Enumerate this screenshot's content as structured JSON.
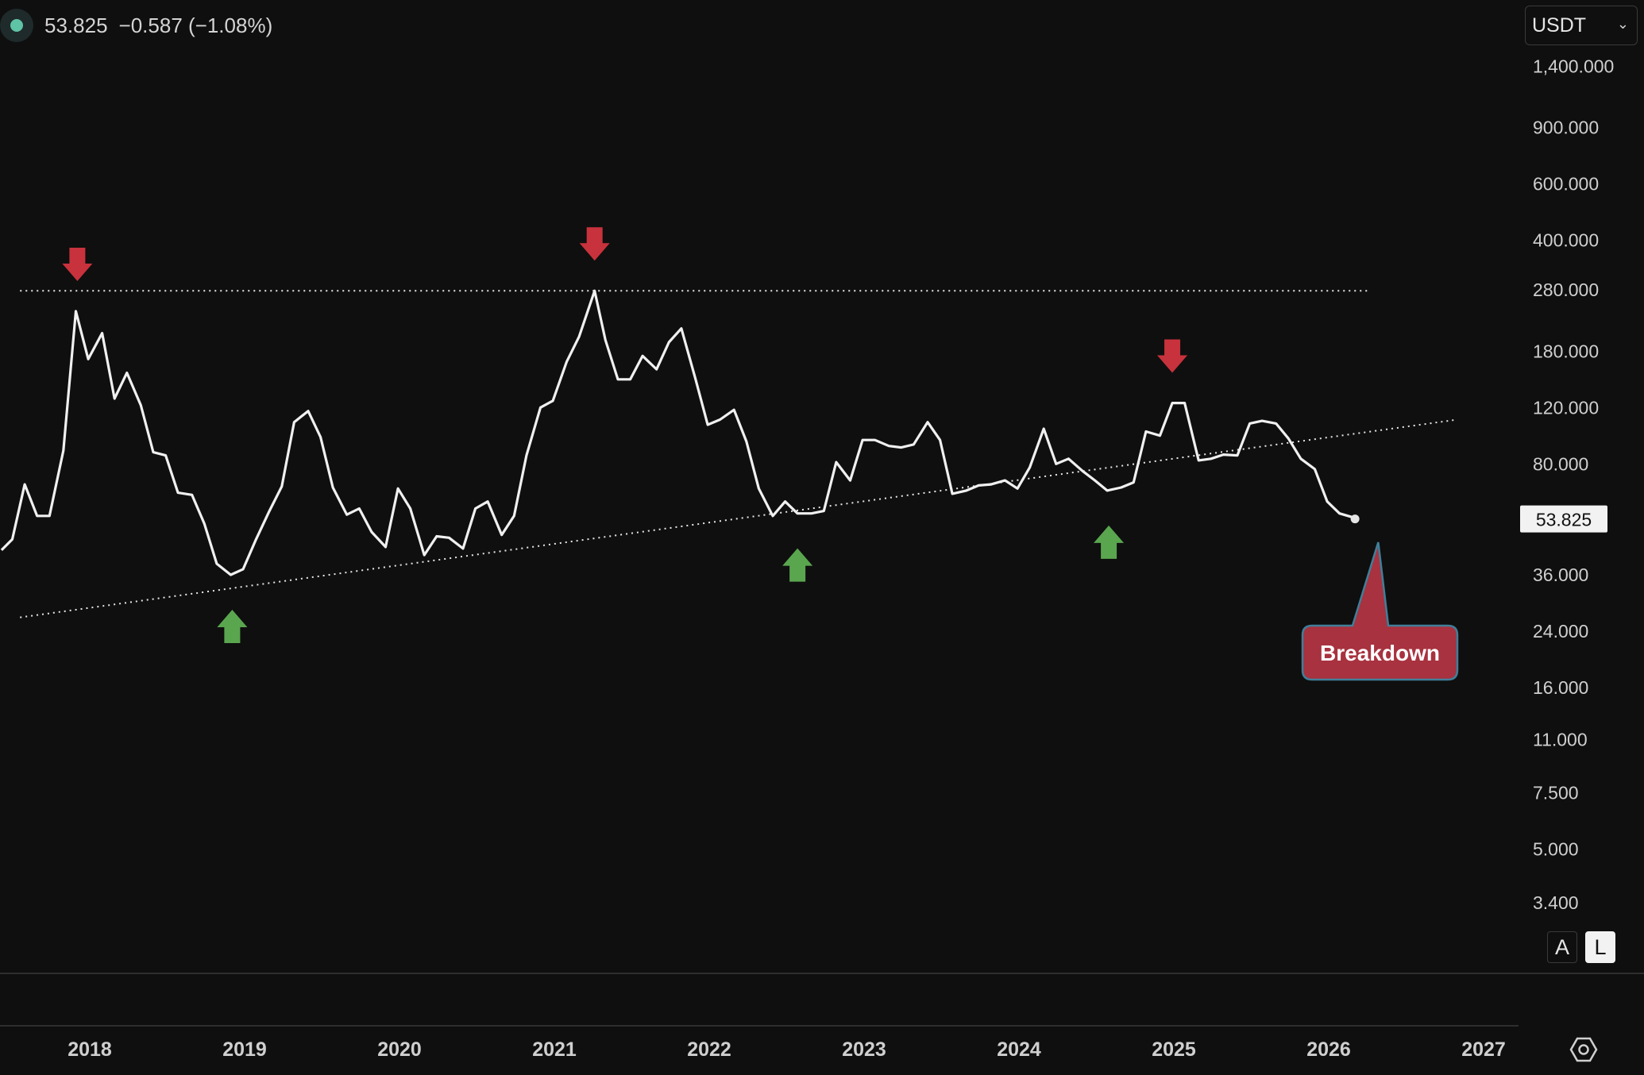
{
  "legend": {
    "price": "53.825",
    "change": "−0.587 (−1.08%)",
    "status_color": "#5fc3a6"
  },
  "currency": {
    "selected": "USDT",
    "icon": "chevron-down-icon"
  },
  "scale_buttons": {
    "auto": "A",
    "log": "L"
  },
  "settings": {
    "icon": "gear-icon"
  },
  "colors": {
    "line": "#f0f0f0",
    "arrow_down": "#c8323c",
    "arrow_up": "#5aa64f",
    "callout_fill": "#a8323f",
    "callout_border": "#3f7f9a",
    "background": "#0f0f0f"
  },
  "chart_data": {
    "type": "line",
    "scale": "log",
    "ylim": [
      2.6,
      1700
    ],
    "xlim": [
      2017.43,
      2027.6
    ],
    "y_ticks": [
      {
        "value": 1400,
        "label": "1,400.000"
      },
      {
        "value": 900,
        "label": "900.000"
      },
      {
        "value": 600,
        "label": "600.000"
      },
      {
        "value": 400,
        "label": "400.000"
      },
      {
        "value": 280,
        "label": "280.000"
      },
      {
        "value": 180,
        "label": "180.000"
      },
      {
        "value": 120,
        "label": "120.000"
      },
      {
        "value": 80,
        "label": "80.000"
      },
      {
        "value": 36,
        "label": "36.000"
      },
      {
        "value": 24,
        "label": "24.000"
      },
      {
        "value": 16,
        "label": "16.000"
      },
      {
        "value": 11,
        "label": "11.000"
      },
      {
        "value": 7.5,
        "label": "7.500"
      },
      {
        "value": 5,
        "label": "5.000"
      },
      {
        "value": 3.4,
        "label": "3.400"
      }
    ],
    "x_ticks": [
      {
        "value": 2018,
        "label": "2018"
      },
      {
        "value": 2019,
        "label": "2019"
      },
      {
        "value": 2020,
        "label": "2020"
      },
      {
        "value": 2021,
        "label": "2021"
      },
      {
        "value": 2022,
        "label": "2022"
      },
      {
        "value": 2023,
        "label": "2023"
      },
      {
        "value": 2024,
        "label": "2024"
      },
      {
        "value": 2025,
        "label": "2025"
      },
      {
        "value": 2026,
        "label": "2026"
      },
      {
        "value": 2027,
        "label": "2027"
      }
    ],
    "last_value": {
      "value": 53.825,
      "label": "53.825"
    },
    "series": [
      {
        "points": [
          [
            2017.43,
            43
          ],
          [
            2017.5,
            46.5
          ],
          [
            2017.58,
            69
          ],
          [
            2017.66,
            55
          ],
          [
            2017.74,
            55
          ],
          [
            2017.83,
            88
          ],
          [
            2017.91,
            240
          ],
          [
            2017.99,
            170
          ],
          [
            2018.08,
            205
          ],
          [
            2018.16,
            128
          ],
          [
            2018.24,
            154
          ],
          [
            2018.33,
            122
          ],
          [
            2018.41,
            87
          ],
          [
            2018.49,
            85
          ],
          [
            2018.57,
            65
          ],
          [
            2018.66,
            64
          ],
          [
            2018.74,
            52
          ],
          [
            2018.82,
            39
          ],
          [
            2018.91,
            36
          ],
          [
            2018.99,
            37.5
          ],
          [
            2019.07,
            46
          ],
          [
            2019.16,
            57
          ],
          [
            2019.24,
            68
          ],
          [
            2019.32,
            108
          ],
          [
            2019.41,
            117
          ],
          [
            2019.49,
            97
          ],
          [
            2019.57,
            67.5
          ],
          [
            2019.66,
            55.5
          ],
          [
            2019.74,
            58
          ],
          [
            2019.82,
            49
          ],
          [
            2019.91,
            44
          ],
          [
            2019.99,
            67
          ],
          [
            2020.07,
            58
          ],
          [
            2020.16,
            41.5
          ],
          [
            2020.24,
            47.5
          ],
          [
            2020.32,
            47
          ],
          [
            2020.41,
            43.5
          ],
          [
            2020.49,
            58
          ],
          [
            2020.57,
            61
          ],
          [
            2020.66,
            48
          ],
          [
            2020.74,
            55
          ],
          [
            2020.82,
            85
          ],
          [
            2020.91,
            120
          ],
          [
            2020.99,
            126
          ],
          [
            2021.08,
            167
          ],
          [
            2021.16,
            200
          ],
          [
            2021.26,
            278
          ],
          [
            2021.33,
            195
          ],
          [
            2021.41,
            147
          ],
          [
            2021.49,
            147
          ],
          [
            2021.57,
            174
          ],
          [
            2021.66,
            158
          ],
          [
            2021.74,
            192
          ],
          [
            2021.82,
            212
          ],
          [
            2021.91,
            148
          ],
          [
            2021.99,
            106
          ],
          [
            2022.07,
            110
          ],
          [
            2022.16,
            118
          ],
          [
            2022.24,
            94
          ],
          [
            2022.32,
            67
          ],
          [
            2022.41,
            55
          ],
          [
            2022.49,
            61
          ],
          [
            2022.57,
            56
          ],
          [
            2022.66,
            56
          ],
          [
            2022.74,
            57
          ],
          [
            2022.82,
            81
          ],
          [
            2022.91,
            71
          ],
          [
            2022.99,
            95
          ],
          [
            2023.07,
            95
          ],
          [
            2023.16,
            91
          ],
          [
            2023.24,
            90
          ],
          [
            2023.32,
            92
          ],
          [
            2023.41,
            108
          ],
          [
            2023.49,
            95
          ],
          [
            2023.57,
            64.5
          ],
          [
            2023.66,
            66
          ],
          [
            2023.74,
            68.5
          ],
          [
            2023.82,
            69
          ],
          [
            2023.91,
            71
          ],
          [
            2023.99,
            67
          ],
          [
            2024.07,
            78
          ],
          [
            2024.16,
            103
          ],
          [
            2024.24,
            80
          ],
          [
            2024.32,
            83
          ],
          [
            2024.41,
            76
          ],
          [
            2024.49,
            71
          ],
          [
            2024.57,
            66
          ],
          [
            2024.66,
            67.5
          ],
          [
            2024.74,
            70
          ],
          [
            2024.82,
            101
          ],
          [
            2024.91,
            98
          ],
          [
            2024.99,
            124
          ],
          [
            2025.07,
            124
          ],
          [
            2025.16,
            82
          ],
          [
            2025.24,
            83
          ],
          [
            2025.32,
            85.5
          ],
          [
            2025.41,
            85
          ],
          [
            2025.49,
            107
          ],
          [
            2025.57,
            109
          ],
          [
            2025.66,
            107
          ],
          [
            2025.74,
            96
          ],
          [
            2025.82,
            83
          ],
          [
            2025.91,
            77
          ],
          [
            2025.99,
            61
          ],
          [
            2026.07,
            56
          ],
          [
            2026.16,
            54.4
          ],
          [
            2026.17,
            53.825
          ]
        ]
      }
    ],
    "annotations": {
      "resistance_line": {
        "x1": 2017.55,
        "x2": 2026.25,
        "y": 278
      },
      "support_trendline": {
        "x1": 2017.55,
        "y1": 26.5,
        "x2": 2026.83,
        "y2": 110
      },
      "down_arrows": [
        2017.92,
        2021.26,
        2024.99
      ],
      "up_arrows": [
        2018.92,
        2022.57,
        2024.58
      ],
      "callout": {
        "label": "Breakdown",
        "x": 2026.32
      }
    }
  }
}
